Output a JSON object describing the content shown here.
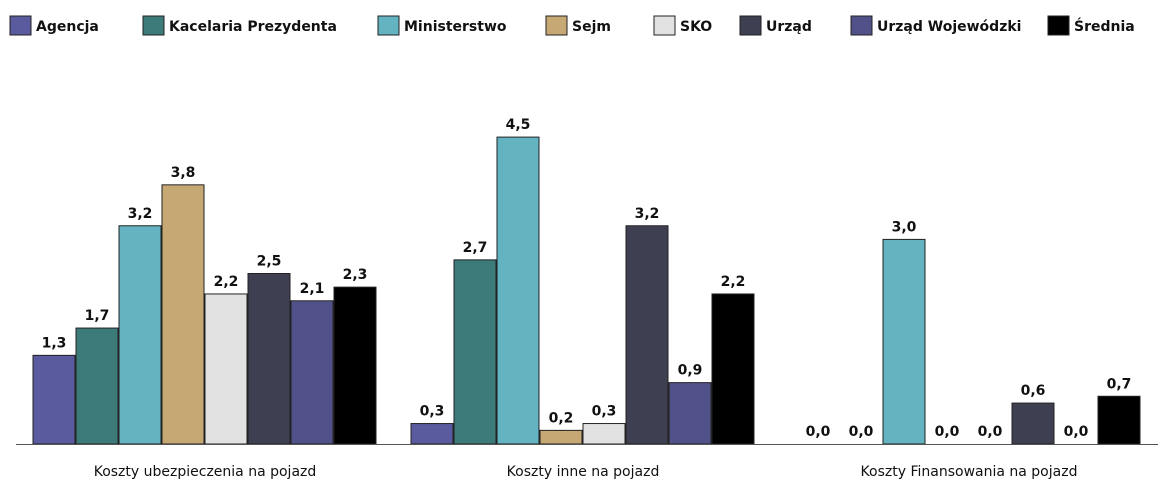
{
  "chart_data": {
    "type": "bar",
    "categories": [
      "Koszty ubezpieczenia na pojazd",
      "Koszty inne na pojazd",
      "Koszty Finansowania na pojazd"
    ],
    "series": [
      {
        "name": "Agencja",
        "color": "#5a5a9e",
        "values": [
          1.3,
          0.3,
          0.0
        ],
        "labels": [
          "1,3",
          "0,3",
          "0,0"
        ]
      },
      {
        "name": "Kacelaria Prezydenta",
        "color": "#3d7b7b",
        "values": [
          1.7,
          2.7,
          0.0
        ],
        "labels": [
          "1,7",
          "2,7",
          "0,0"
        ]
      },
      {
        "name": "Ministerstwo",
        "color": "#63b3c1",
        "values": [
          3.2,
          4.5,
          3.0
        ],
        "labels": [
          "3,2",
          "4,5",
          "3,0"
        ]
      },
      {
        "name": "Sejm",
        "color": "#c6a874",
        "values": [
          3.8,
          0.2,
          0.0
        ],
        "labels": [
          "3,8",
          "0,2",
          "0,0"
        ]
      },
      {
        "name": "SKO",
        "color": "#e2e2e2",
        "values": [
          2.2,
          0.3,
          0.0
        ],
        "labels": [
          "2,2",
          "0,3",
          "0,0"
        ]
      },
      {
        "name": "Urząd",
        "color": "#3f3f52",
        "values": [
          2.5,
          3.2,
          0.6
        ],
        "labels": [
          "2,5",
          "3,2",
          "0,6"
        ]
      },
      {
        "name": "Urząd Wojewódzki",
        "color": "#51518a",
        "values": [
          2.1,
          0.9,
          0.0
        ],
        "labels": [
          "2,1",
          "0,9",
          "0,0"
        ]
      },
      {
        "name": "Średnia",
        "color": "#000000",
        "values": [
          2.3,
          2.2,
          0.7
        ],
        "labels": [
          "2,3",
          "2,2",
          "0,7"
        ]
      }
    ],
    "ylim": [
      0,
      4.5
    ],
    "legend_position": "top",
    "grid": false,
    "title": "",
    "xlabel": "",
    "ylabel": ""
  }
}
